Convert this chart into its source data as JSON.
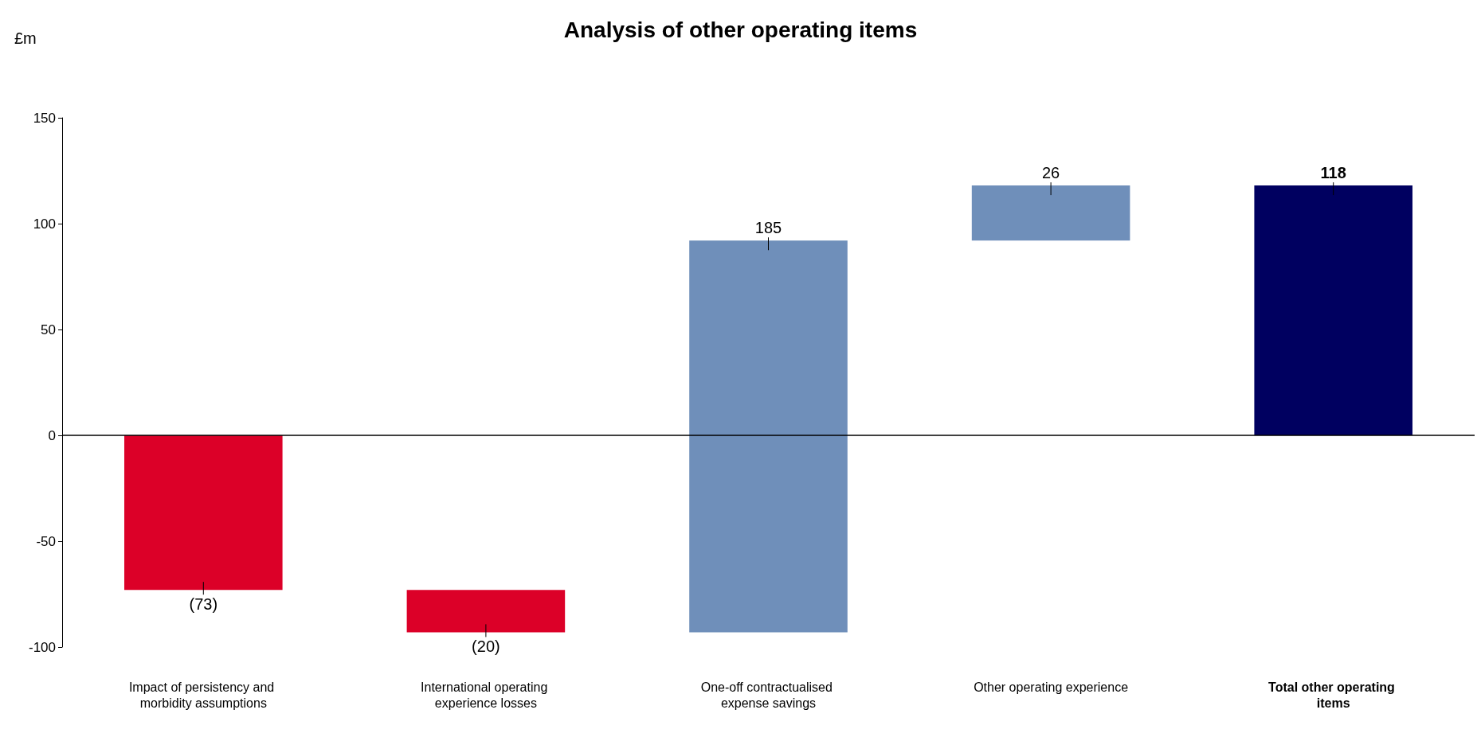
{
  "chart_data": {
    "type": "bar",
    "title": "Analysis of other operating items",
    "ylabel": "£m",
    "categories": [
      "Impact of persistency and morbidity assumptions",
      "International operating experience losses",
      "One-off contractualised expense savings",
      "Other operating experience",
      "Total other operating items"
    ],
    "values": [
      -73,
      -20,
      185,
      26,
      118
    ],
    "base": [
      0,
      -73,
      -93,
      92,
      0
    ],
    "colors": [
      "#dc0028",
      "#dc0028",
      "#6f8fba",
      "#6f8fba",
      "#000060"
    ],
    "value_labels": [
      "(73)",
      "(20)",
      "185",
      "26",
      "118"
    ],
    "ylim": [
      -100,
      150
    ],
    "yticks": [
      -100,
      -50,
      0,
      50,
      100,
      150
    ],
    "ref_lines": [
      {
        "axis": "y",
        "value": 0,
        "color": "#000000"
      }
    ]
  }
}
